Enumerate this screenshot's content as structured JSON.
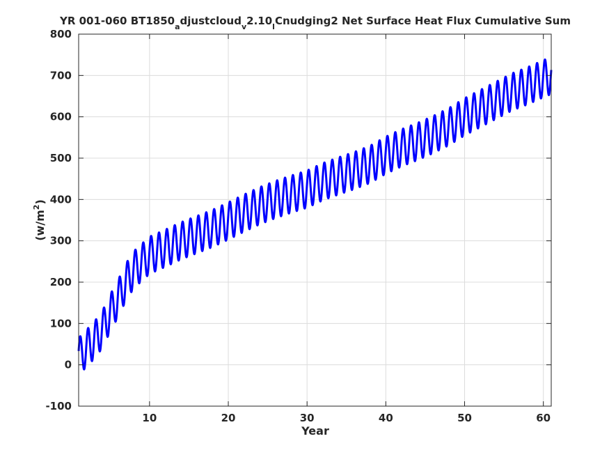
{
  "chart_data": {
    "type": "line",
    "title_parts": {
      "p1": "YR 001-060 BT1850",
      "s1": "a",
      "p2": "djustcloud",
      "s2": "v",
      "p3": "2.10",
      "s3": "l",
      "p4": "Cnudging2 Net Surface Heat Flux  Cumulative Sum"
    },
    "xlabel": "Year",
    "ylabel_parts": {
      "base": "(w/m",
      "sup": "2",
      "close": ")"
    },
    "xlim": [
      1,
      61
    ],
    "ylim": [
      -100,
      800
    ],
    "xticks": [
      10,
      20,
      30,
      40,
      50,
      60
    ],
    "yticks": [
      -100,
      0,
      100,
      200,
      300,
      400,
      500,
      600,
      700,
      800
    ],
    "grid": true,
    "series": [
      {
        "color": "#0000ff",
        "seasonal_amplitude": 45,
        "trend": {
          "x": [
            1,
            2,
            3,
            4,
            5,
            6,
            7,
            8,
            10,
            12,
            14,
            16,
            18,
            20,
            22,
            24,
            26,
            28,
            30,
            32,
            34,
            36,
            38,
            40,
            42,
            44,
            46,
            48,
            50,
            52,
            54,
            56,
            58,
            60,
            61
          ],
          "y": [
            20,
            40,
            60,
            85,
            125,
            160,
            200,
            230,
            265,
            282,
            300,
            315,
            330,
            348,
            367,
            385,
            400,
            413,
            425,
            443,
            457,
            470,
            485,
            507,
            525,
            540,
            557,
            576,
            600,
            620,
            640,
            660,
            675,
            692,
            700
          ]
        }
      }
    ]
  }
}
